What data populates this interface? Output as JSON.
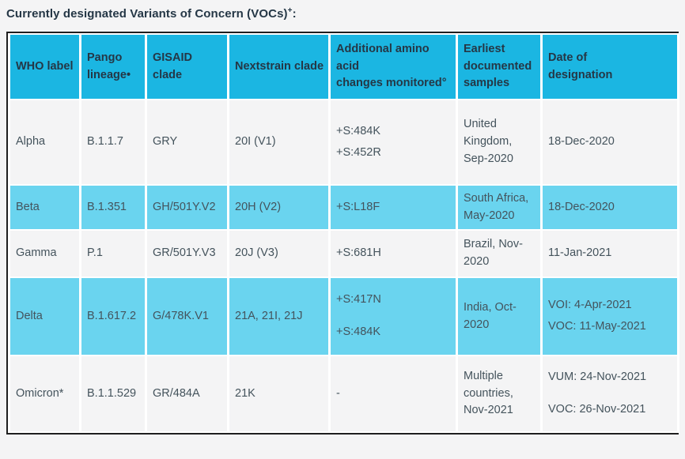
{
  "title": {
    "text": "Currently designated Variants of Concern (VOCs)",
    "sup": "+",
    "colon": ":"
  },
  "table": {
    "colors": {
      "header_bg": "#1bb6e2",
      "highlight_row_bg": "#6ad4ef",
      "plain_row_bg": "#f4f4f5",
      "header_text": "#253746",
      "cell_text": "#44535c",
      "outer_border": "#1f1f1f",
      "cell_separator": "#ffffff"
    },
    "headers": {
      "who": "WHO label",
      "pango": "Pango lineage•",
      "gisaid": "GISAID clade",
      "nextstrain": "Nextstrain clade",
      "amino_line1": "Additional amino acid",
      "amino_line2": "changes monitored°",
      "earliest": "Earliest documented samples",
      "designation": "Date of designation"
    },
    "rows": [
      {
        "who": "Alpha",
        "pango": "B.1.1.7",
        "gisaid": "GRY",
        "nextstrain": "20I (V1)",
        "amino": [
          "+S:484K",
          "+S:452R"
        ],
        "earliest": "United Kingdom, Sep-2020",
        "designation": [
          "18-Dec-2020"
        ]
      },
      {
        "who": "Beta",
        "pango": "B.1.351",
        "gisaid": "GH/501Y.V2",
        "nextstrain": "20H (V2)",
        "amino": [
          "+S:L18F"
        ],
        "earliest": "South Africa, May-2020",
        "designation": [
          "18-Dec-2020"
        ]
      },
      {
        "who": "Gamma",
        "pango": "P.1",
        "gisaid": "GR/501Y.V3",
        "nextstrain": "20J (V3)",
        "amino": [
          "+S:681H"
        ],
        "earliest": "Brazil, Nov-2020",
        "designation": [
          "11-Jan-2021"
        ]
      },
      {
        "who": "Delta",
        "pango": "B.1.617.2",
        "gisaid": "G/478K.V1",
        "nextstrain": "21A, 21I, 21J",
        "amino": [
          "+S:417N",
          "+S:484K"
        ],
        "earliest": "India, Oct-2020",
        "designation": [
          "VOI: 4-Apr-2021",
          "VOC: 11-May-2021"
        ]
      },
      {
        "who": "Omicron*",
        "pango": "B.1.1.529",
        "gisaid": "GR/484A",
        "nextstrain": "21K",
        "amino": [
          "-"
        ],
        "earliest": "Multiple countries, Nov-2021",
        "designation": [
          "VUM: 24-Nov-2021",
          "VOC: 26-Nov-2021"
        ]
      }
    ]
  }
}
